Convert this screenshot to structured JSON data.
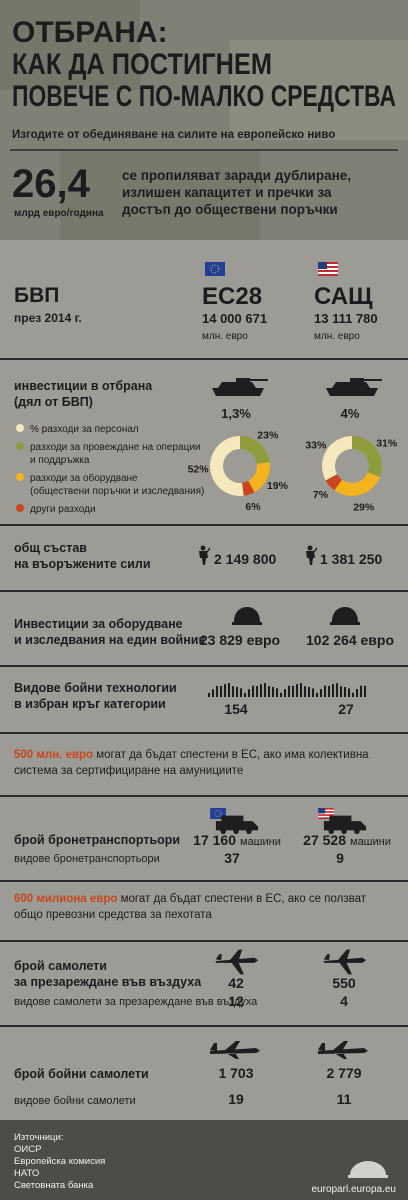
{
  "header": {
    "title": [
      "ОТБРАНА:",
      "КАК ДА ПОСТИГНЕМ",
      "ПОВЕЧЕ С ПО-МАЛКО СРЕДСТВА"
    ],
    "subtitle": "Изгодите от обединяване на силите на европейско ниво"
  },
  "waste": {
    "value": "26,4",
    "unit": "млрд евро/година",
    "text": [
      "се пропиляват заради дублиране,",
      "излишен капацитет и пречки за",
      "достъп до обществени поръчки"
    ]
  },
  "gdp": {
    "label": "БВП",
    "sublabel": "през 2014 г.",
    "eu": {
      "name": "ЕС28",
      "value": "14 000 671",
      "unit": "млн. евро"
    },
    "us": {
      "name": "САЩ",
      "value": "13 111 780",
      "unit": "млн. евро"
    }
  },
  "investment": {
    "label": [
      "инвестиции в отбрана",
      "(дял от БВП)"
    ],
    "eu": "1,3%",
    "us": "4%",
    "legend": [
      {
        "label": [
          "% разходи за персонал"
        ],
        "color": "#f5e8bd"
      },
      {
        "label": [
          "разходи за провеждане на операции",
          "и поддръжка"
        ],
        "color": "#8f9c3c"
      },
      {
        "label": [
          "разходи за оборудване",
          "(обществени поръчки и изследвания)"
        ],
        "color": "#f3b31c"
      },
      {
        "label": [
          "други разходи"
        ],
        "color": "#c9461f"
      }
    ],
    "eu_shares": {
      "values": [
        52,
        23,
        19,
        6
      ],
      "value_labels": [
        "52%",
        "23%",
        "19%",
        "6%"
      ]
    },
    "us_shares": {
      "values": [
        33,
        31,
        29,
        7
      ],
      "value_labels": [
        "33%",
        "31%",
        "29%",
        "7%"
      ]
    }
  },
  "troops": {
    "label": [
      "общ състав",
      "на въоръжените сили"
    ],
    "eu": "2 149 800",
    "us": "1 381 250"
  },
  "equipment": {
    "label": [
      "Инвестиции за оборудване",
      "и изследвания на един войник"
    ],
    "eu": "23 829 евро",
    "us": "102 264 евро"
  },
  "types": {
    "label": [
      "Видове бойни технологии",
      "в избран кръг категории"
    ],
    "eu": "154",
    "us": "27"
  },
  "note1": {
    "highlight": "500 млн. евро",
    "text": [
      " могат да бъдат спестени в ЕС, ако има колективна",
      "система за сертифициране на амунициите"
    ]
  },
  "apc": {
    "label": "брой бронетранспортьори",
    "sublabel": "видове бронетранспортьори",
    "eu": "17 160",
    "us": "27 528",
    "unit": "машини",
    "eu_types": "37",
    "us_types": "9"
  },
  "note2": {
    "highlight": "600 милиона евро",
    "text": [
      " могат да бъдат спестени в ЕС, ако се ползват",
      "общо превозни средства за пехотата"
    ]
  },
  "tankers": {
    "label": [
      "брой самолети",
      "за презареждане във въздуха"
    ],
    "sublabel": "видове самолети за презареждане във въздуха",
    "eu": "42",
    "us": "550",
    "eu_types": "12",
    "us_types": "4"
  },
  "fighters": {
    "label": "брой бойни самолети",
    "sublabel": "видове бойни самолети",
    "eu": "1 703",
    "us": "2 779",
    "eu_types": "19",
    "us_types": "11"
  },
  "footer": {
    "sources": [
      "Източници:",
      "ОИСР",
      "Европейска комисия",
      "НАТО",
      "Световната банка"
    ],
    "url": "europarl.europa.eu"
  }
}
